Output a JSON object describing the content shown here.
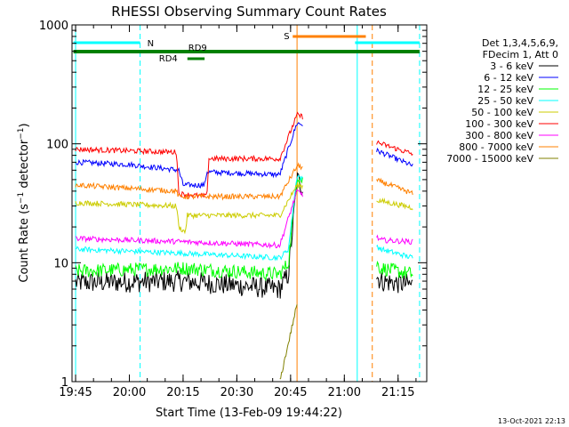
{
  "chart_data": {
    "type": "line",
    "title": "RHESSI Observing Summary Count Rates",
    "xlabel": "Start Time (13-Feb-09 19:44:22)",
    "ylabel": "Count Rate (s⁻¹ detector⁻¹)",
    "ylabel_main": "Count Rate (s",
    "ylabel_sup1": "−1",
    "ylabel_mid": " detector",
    "ylabel_sup2": "−1",
    "ylabel_end": ")",
    "y_scale": "log",
    "ylim": [
      1,
      1000
    ],
    "xlim": [
      "19:44",
      "21:23"
    ],
    "x_ticks": [
      "19:45",
      "20:00",
      "20:15",
      "20:30",
      "20:45",
      "21:00",
      "21:15"
    ],
    "y_tick_labels": [
      {
        "value": 1000,
        "label": "1000"
      },
      {
        "value": 100,
        "label": "100"
      },
      {
        "value": 10,
        "label": "10"
      },
      {
        "value": 1,
        "label": "1"
      }
    ],
    "legend_position": "right",
    "legend_header": [
      "Det 1,3,4,5,6,9,",
      "FDecim 1, Att 0"
    ],
    "series": [
      {
        "name": "3 - 6 keV",
        "color": "#000000",
        "values": [
          [
            19.75,
            6.8
          ],
          [
            20.25,
            7.0
          ],
          [
            20.7,
            6.0
          ],
          [
            20.74,
            8
          ],
          [
            20.78,
            50
          ],
          [
            21.17,
            7.0
          ],
          [
            21.32,
            6.5
          ]
        ]
      },
      {
        "name": "6 - 12 keV",
        "color": "#0000ff",
        "values": [
          [
            19.75,
            70
          ],
          [
            20.0,
            67
          ],
          [
            20.23,
            60
          ],
          [
            20.25,
            45
          ],
          [
            20.35,
            45
          ],
          [
            20.36,
            58
          ],
          [
            20.7,
            55
          ],
          [
            20.78,
            150
          ],
          [
            21.17,
            85
          ],
          [
            21.32,
            65
          ]
        ]
      },
      {
        "name": "12 - 25 keV",
        "color": "#00ff00",
        "values": [
          [
            19.75,
            8.5
          ],
          [
            20.25,
            9.0
          ],
          [
            20.7,
            8.0
          ],
          [
            20.74,
            10
          ],
          [
            20.78,
            55
          ],
          [
            21.17,
            9.0
          ],
          [
            21.32,
            8.0
          ]
        ]
      },
      {
        "name": "25 - 50 keV",
        "color": "#00ffff",
        "values": [
          [
            19.75,
            13
          ],
          [
            20.25,
            12
          ],
          [
            20.7,
            11
          ],
          [
            20.74,
            13
          ],
          [
            20.78,
            55
          ],
          [
            21.17,
            13
          ],
          [
            21.32,
            11
          ]
        ]
      },
      {
        "name": "50 - 100 keV",
        "color": "#cccc00",
        "values": [
          [
            19.75,
            32
          ],
          [
            20.22,
            30
          ],
          [
            20.23,
            20
          ],
          [
            20.26,
            18
          ],
          [
            20.27,
            25
          ],
          [
            20.7,
            25
          ],
          [
            20.78,
            45
          ],
          [
            21.17,
            33
          ],
          [
            21.32,
            29
          ]
        ]
      },
      {
        "name": "100 - 300 keV",
        "color": "#ff0000",
        "values": [
          [
            19.75,
            90
          ],
          [
            20.22,
            85
          ],
          [
            20.23,
            38
          ],
          [
            20.36,
            36
          ],
          [
            20.37,
            75
          ],
          [
            20.7,
            75
          ],
          [
            20.78,
            175
          ],
          [
            21.17,
            100
          ],
          [
            21.32,
            82
          ]
        ]
      },
      {
        "name": "300 - 800 keV",
        "color": "#ff00ff",
        "values": [
          [
            19.75,
            16
          ],
          [
            20.25,
            15
          ],
          [
            20.7,
            14
          ],
          [
            20.78,
            40
          ],
          [
            21.17,
            15.5
          ],
          [
            21.32,
            15
          ]
        ]
      },
      {
        "name": "800 - 7000 keV",
        "color": "#ff8000",
        "values": [
          [
            19.75,
            45
          ],
          [
            20.22,
            40
          ],
          [
            20.23,
            36
          ],
          [
            20.7,
            36
          ],
          [
            20.78,
            65
          ],
          [
            21.17,
            48
          ],
          [
            21.32,
            38
          ]
        ]
      },
      {
        "name": "7000 - 15000 keV",
        "color": "#808000",
        "values": [
          [
            20.7,
            1.0
          ],
          [
            20.78,
            4.5
          ]
        ]
      }
    ],
    "flag_bars": [
      {
        "label": "N",
        "color": "#00ffff",
        "segments": [
          [
            19.74,
            20.05
          ],
          [
            21.05,
            21.35
          ]
        ]
      },
      {
        "label": "S",
        "color": "#ff8000",
        "segments": [
          [
            20.76,
            21.1
          ]
        ]
      },
      {
        "label": "RD9",
        "color": "#008000",
        "segments": [
          [
            19.74,
            21.35
          ]
        ]
      },
      {
        "label": "RD4",
        "color": "#008000",
        "segments": [
          [
            20.27,
            20.35
          ]
        ]
      }
    ],
    "vertical_markers": [
      {
        "x": 19.75,
        "color": "#00ffff",
        "style": "solid"
      },
      {
        "x": 20.05,
        "color": "#00ffff",
        "style": "dashed"
      },
      {
        "x": 20.78,
        "color": "#ff8000",
        "style": "solid"
      },
      {
        "x": 21.06,
        "color": "#00ffff",
        "style": "solid"
      },
      {
        "x": 21.13,
        "color": "#ff8000",
        "style": "dashed"
      },
      {
        "x": 21.35,
        "color": "#00ffff",
        "style": "dashed"
      }
    ],
    "footer_date": "13-Oct-2021 22:13"
  }
}
